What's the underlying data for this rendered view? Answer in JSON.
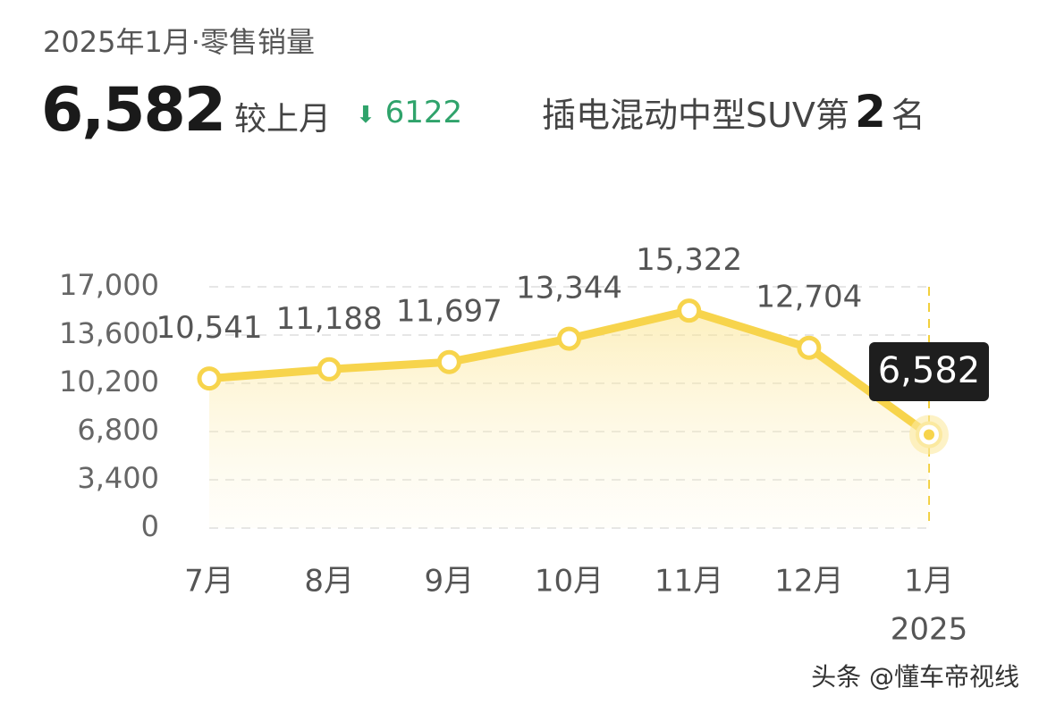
{
  "header": {
    "period": "2025年1月·零售销量",
    "sales": "6,582",
    "compare_label": "较上月",
    "change": 6122,
    "rank_prefix": "插电混动中型SUV第",
    "rank": 2,
    "rank_suffix": "名"
  },
  "chart_data": {
    "type": "line",
    "categories": [
      "7月",
      "8月",
      "9月",
      "10月",
      "11月",
      "12月",
      "1月"
    ],
    "year": "2025",
    "values": [
      10541,
      11188,
      11697,
      13344,
      15322,
      12704,
      6582
    ],
    "value_labels": [
      "10,541",
      "11,188",
      "11,697",
      "13,344",
      "15,322",
      "12,704",
      "6,582"
    ],
    "color": "#f7d44c",
    "ylim": [
      0,
      17000
    ],
    "yticks": [
      0,
      {
        "value": 3400,
        "label": "3,400"
      },
      {
        "value": 6800,
        "label": "6,800"
      },
      {
        "value": 10200,
        "label": "10,200"
      },
      {
        "value": 13600,
        "label": "13,600"
      },
      {
        "value": 17000,
        "label": "17,000"
      }
    ],
    "grid": true
  },
  "watermark": "头条 @懂车帝视线"
}
